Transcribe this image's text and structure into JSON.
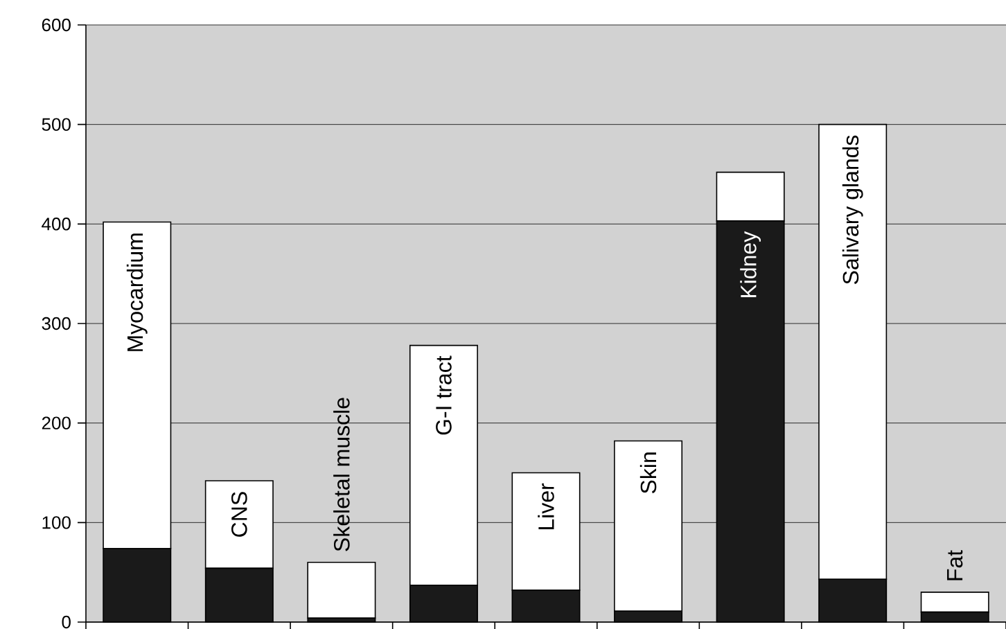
{
  "chart_data": {
    "type": "bar",
    "stacked": true,
    "categories": [
      "Myocardium",
      "CNS",
      "Skeletal muscle",
      "G-I tract",
      "Liver",
      "Skin",
      "Kidney",
      "Salivary glands",
      "Fat"
    ],
    "series": [
      {
        "color": "#1a1a1a",
        "values": [
          74,
          54,
          4,
          37,
          32,
          11,
          403,
          43,
          10
        ]
      },
      {
        "color": "#ffffff",
        "values": [
          328,
          88,
          56,
          241,
          118,
          171,
          49,
          457,
          20
        ]
      }
    ],
    "ylim": [
      0,
      600
    ],
    "yticks": [
      0,
      100,
      200,
      300,
      400,
      500,
      600
    ],
    "grid": "y"
  }
}
